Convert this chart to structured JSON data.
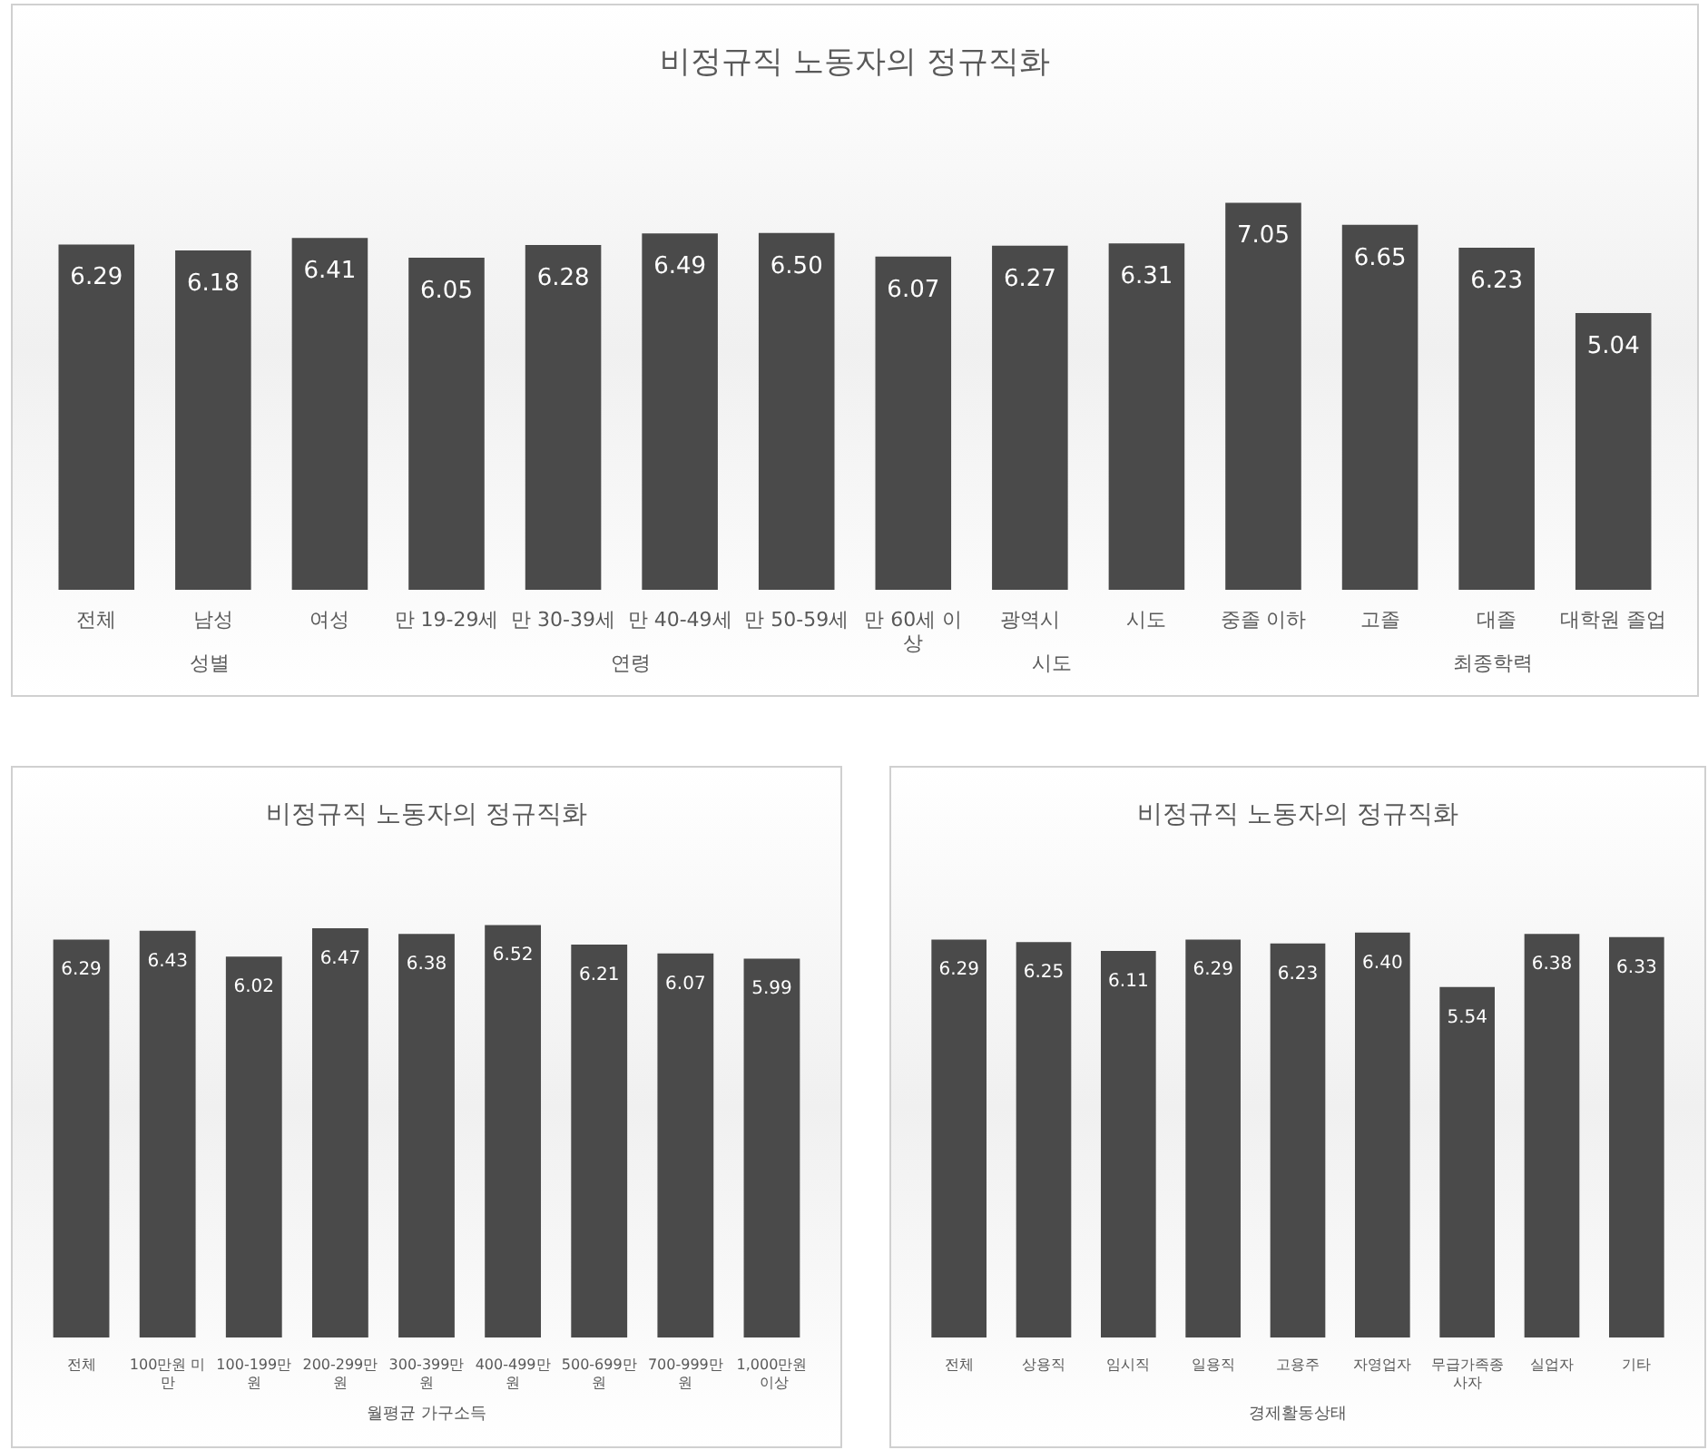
{
  "chart_data": [
    {
      "type": "bar",
      "title": "비정규직 노동자의 정규직화",
      "categories": [
        "전체",
        "남성",
        "여성",
        "만 19-29세",
        "만 30-39세",
        "만 40-49세",
        "만 50-59세",
        "만 60세 이상",
        "광역시",
        "시도",
        "중졸 이하",
        "고졸",
        "대졸",
        "대학원 졸업"
      ],
      "values": [
        6.29,
        6.18,
        6.41,
        6.05,
        6.28,
        6.49,
        6.5,
        6.07,
        6.27,
        6.31,
        7.05,
        6.65,
        6.23,
        5.04
      ],
      "color": "#4a4a4a",
      "value_labels": [
        "6.29",
        "6.18",
        "6.41",
        "6.05",
        "6.28",
        "6.49",
        "6.50",
        "6.07",
        "6.27",
        "6.31",
        "7.05",
        "6.65",
        "6.23",
        "5.04"
      ],
      "annotations": [
        "성별",
        "연령",
        "시도",
        "최종학력"
      ]
    },
    {
      "type": "bar",
      "title": "비정규직 노동자의 정규직화",
      "xlabel": "월평균 가구소득",
      "categories": [
        "전체",
        "100만원 미만",
        "100-199만원",
        "200-299만원",
        "300-399만원",
        "400-499만원",
        "500-699만원",
        "700-999만원",
        "1,000만원 이상"
      ],
      "values": [
        6.29,
        6.43,
        6.02,
        6.47,
        6.38,
        6.52,
        6.21,
        6.07,
        5.99
      ],
      "color": "#4a4a4a",
      "value_labels": [
        "6.29",
        "6.43",
        "6.02",
        "6.47",
        "6.38",
        "6.52",
        "6.21",
        "6.07",
        "5.99"
      ]
    },
    {
      "type": "bar",
      "title": "비정규직 노동자의 정규직화",
      "xlabel": "경제활동상태",
      "categories": [
        "전체",
        "상용직",
        "임시직",
        "일용직",
        "고용주",
        "자영업자",
        "무급가족종사자",
        "실업자",
        "기타"
      ],
      "values": [
        6.29,
        6.25,
        6.11,
        6.29,
        6.23,
        6.4,
        5.54,
        6.38,
        6.33
      ],
      "color": "#4a4a4a",
      "value_labels": [
        "6.29",
        "6.25",
        "6.11",
        "6.29",
        "6.23",
        "6.40",
        "5.54",
        "6.38",
        "6.33"
      ]
    }
  ]
}
